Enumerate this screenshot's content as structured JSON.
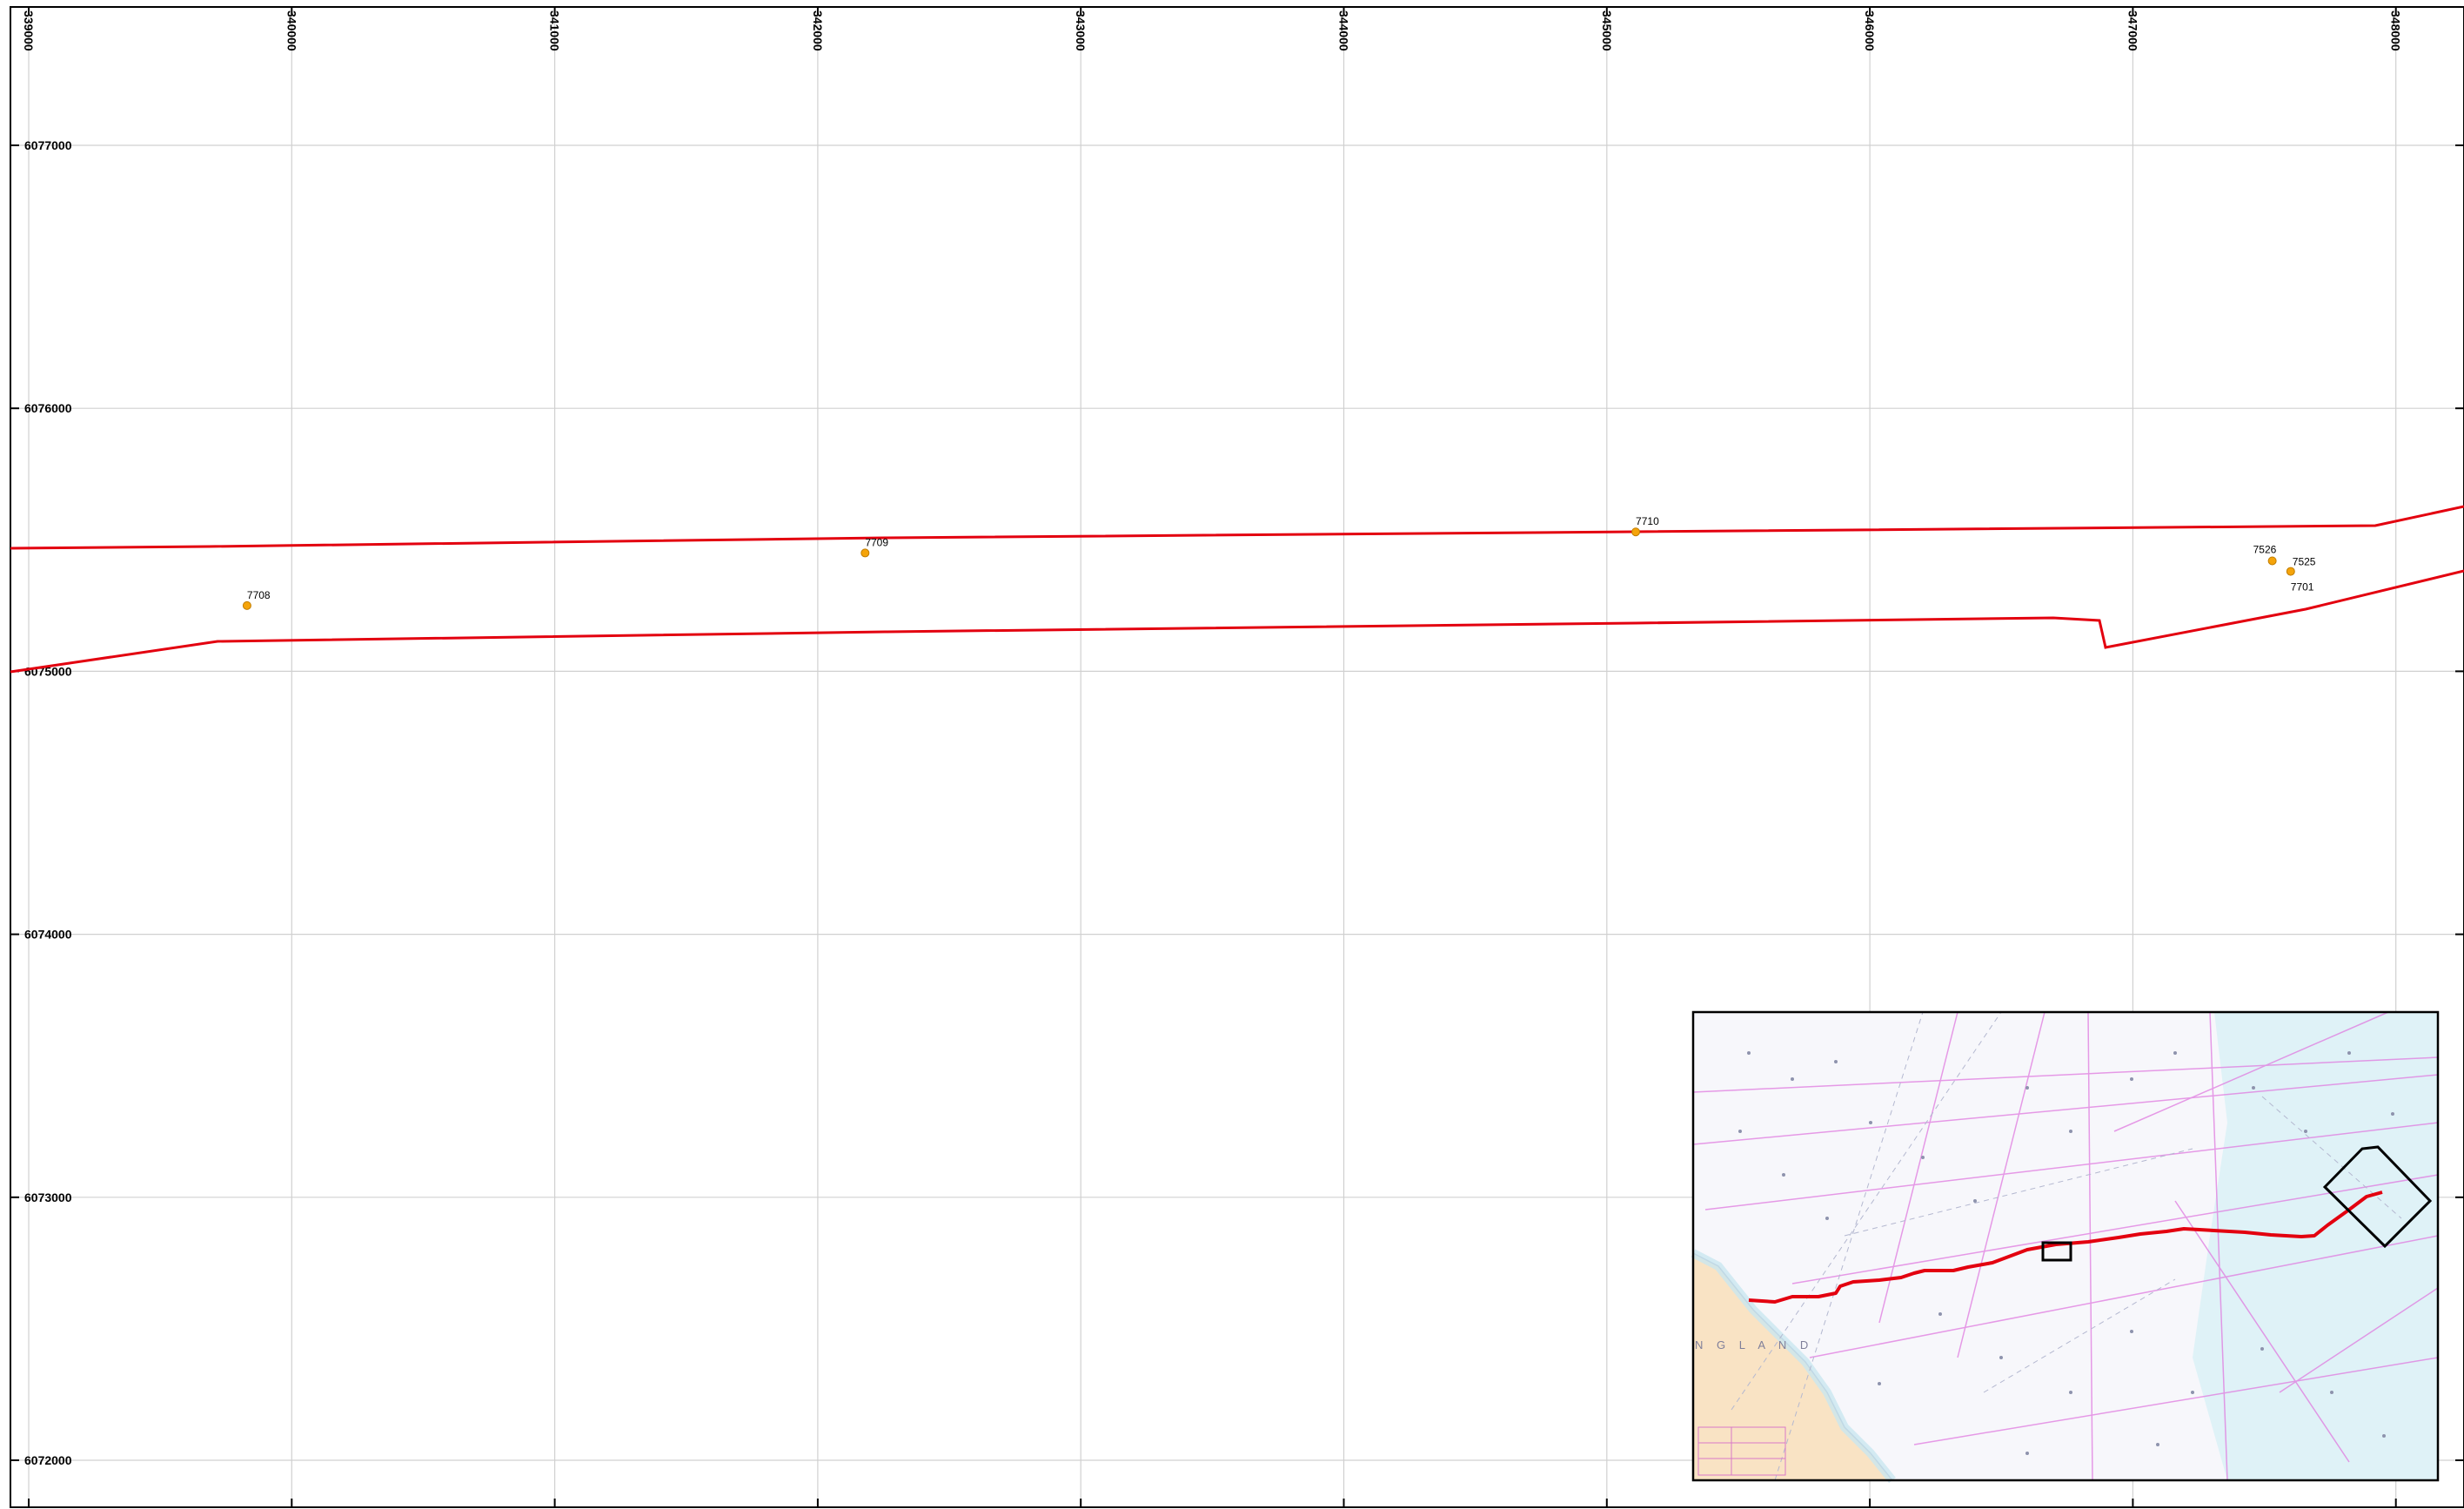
{
  "map": {
    "x_ticks": [
      "339000",
      "340000",
      "341000",
      "342000",
      "343000",
      "344000",
      "345000",
      "346000",
      "347000",
      "348000"
    ],
    "y_ticks": [
      "6077000",
      "6076000",
      "6075000",
      "6074000",
      "6073000",
      "6072000"
    ],
    "points": [
      {
        "id": "7708",
        "x": 339830,
        "y": 6075250
      },
      {
        "id": "7709",
        "x": 342180,
        "y": 6075450
      },
      {
        "id": "7710",
        "x": 345110,
        "y": 6075530
      },
      {
        "id": "7526",
        "x": 347530,
        "y": 6075420
      },
      {
        "id": "7525",
        "x": 347600,
        "y": 6075380
      },
      {
        "id": "7701",
        "x": 347600,
        "y": 6075380
      }
    ],
    "corridor_color": "#e3000f",
    "point_color": "#f5a40a",
    "grid_color": "#d0d0d0"
  },
  "inset": {
    "land_label": "N G L A N D",
    "route_color": "#e3000f",
    "icon": "nautical-chart-overview"
  }
}
